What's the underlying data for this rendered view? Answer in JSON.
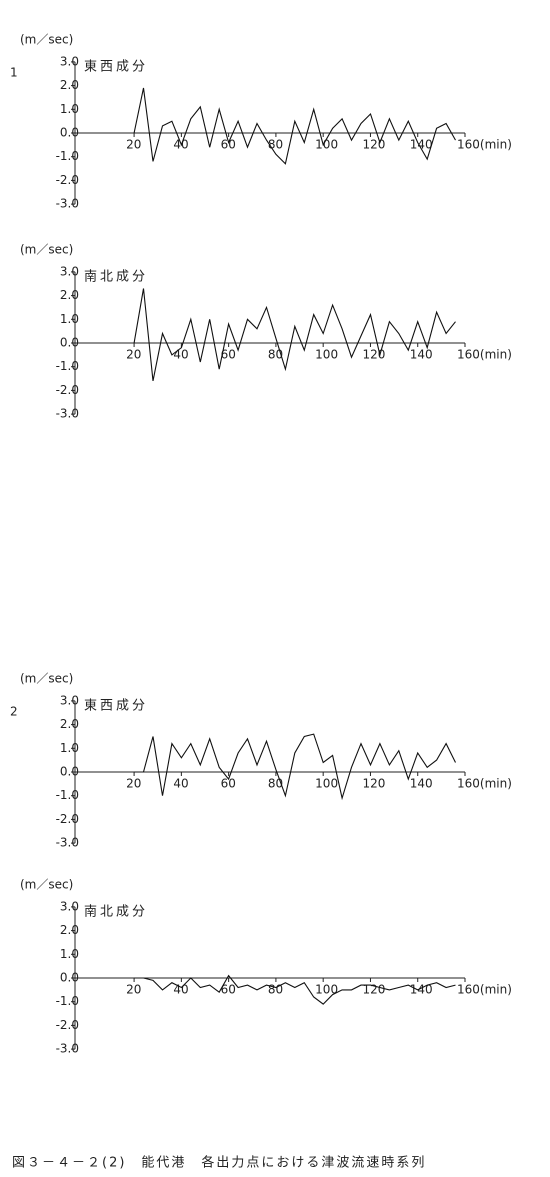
{
  "caption": "図３－４－２(2)　能代港　各出力点における津波流速時系列",
  "chart_data": [
    {
      "type": "line",
      "label": "1",
      "y_label": "(m／sec)",
      "title": "東西成分",
      "color": "#111111",
      "x": [
        20,
        24,
        28,
        32,
        36,
        40,
        44,
        48,
        52,
        56,
        60,
        64,
        68,
        72,
        76,
        80,
        84,
        88,
        92,
        96,
        100,
        104,
        108,
        112,
        116,
        120,
        124,
        128,
        132,
        136,
        140,
        144,
        148,
        152,
        156
      ],
      "values": [
        0,
        1.9,
        -1.2,
        0.3,
        0.5,
        -0.5,
        0.6,
        1.1,
        -0.6,
        1.0,
        -0.4,
        0.5,
        -0.6,
        0.4,
        -0.3,
        -0.9,
        -1.3,
        0.5,
        -0.4,
        1.0,
        -0.5,
        0.2,
        0.6,
        -0.3,
        0.4,
        0.8,
        -0.4,
        0.6,
        -0.3,
        0.5,
        -0.4,
        -1.1,
        0.2,
        0.4,
        -0.3
      ],
      "xlim": [
        -5,
        160
      ],
      "ylim": [
        -3,
        3
      ],
      "xticks": [
        20,
        40,
        60,
        80,
        100,
        120,
        140,
        {
          "value": 160,
          "label": "160(min)"
        }
      ],
      "yticks": [
        {
          "value": 3,
          "label": "3.0"
        },
        {
          "value": 2,
          "label": "2.0"
        },
        {
          "value": 1,
          "label": "1.0"
        },
        {
          "value": 0,
          "label": "0.0"
        },
        {
          "value": -1,
          "label": "-1.0"
        },
        {
          "value": -2,
          "label": "-2.0"
        },
        {
          "value": -3,
          "label": "-3.0"
        }
      ]
    },
    {
      "type": "line",
      "y_label": "(m／sec)",
      "title": "南北成分",
      "color": "#111111",
      "x": [
        20,
        24,
        28,
        32,
        36,
        40,
        44,
        48,
        52,
        56,
        60,
        64,
        68,
        72,
        76,
        80,
        84,
        88,
        92,
        96,
        100,
        104,
        108,
        112,
        116,
        120,
        124,
        128,
        132,
        136,
        140,
        144,
        148,
        152,
        156
      ],
      "values": [
        0,
        2.3,
        -1.6,
        0.4,
        -0.5,
        -0.2,
        1.0,
        -0.8,
        1.0,
        -1.1,
        0.8,
        -0.3,
        1.0,
        0.6,
        1.5,
        0.2,
        -1.1,
        0.7,
        -0.3,
        1.2,
        0.4,
        1.6,
        0.6,
        -0.6,
        0.3,
        1.2,
        -0.5,
        0.9,
        0.4,
        -0.3,
        0.9,
        -0.2,
        1.3,
        0.4,
        0.9
      ],
      "xlim": [
        -5,
        160
      ],
      "ylim": [
        -3,
        3
      ],
      "xticks": [
        20,
        40,
        60,
        80,
        100,
        120,
        140,
        {
          "value": 160,
          "label": "160(min)"
        }
      ],
      "yticks": [
        {
          "value": 3,
          "label": "3.0"
        },
        {
          "value": 2,
          "label": "2.0"
        },
        {
          "value": 1,
          "label": "1.0"
        },
        {
          "value": 0,
          "label": "0.0"
        },
        {
          "value": -1,
          "label": "-1.0"
        },
        {
          "value": -2,
          "label": "-2.0"
        },
        {
          "value": -3,
          "label": "-3.0"
        }
      ]
    },
    {
      "type": "line",
      "label": "2",
      "y_label": "(m／sec)",
      "title": "東西成分",
      "color": "#111111",
      "x": [
        20,
        24,
        28,
        32,
        36,
        40,
        44,
        48,
        52,
        56,
        60,
        64,
        68,
        72,
        76,
        80,
        84,
        88,
        92,
        96,
        100,
        104,
        108,
        112,
        116,
        120,
        124,
        128,
        132,
        136,
        140,
        144,
        148,
        152,
        156
      ],
      "values": [
        0,
        0,
        1.5,
        -1.0,
        1.2,
        0.6,
        1.2,
        0.3,
        1.4,
        0.2,
        -0.3,
        0.8,
        1.4,
        0.3,
        1.3,
        0.1,
        -1.0,
        0.8,
        1.5,
        1.6,
        0.4,
        0.7,
        -1.1,
        0.2,
        1.2,
        0.3,
        1.2,
        0.3,
        0.9,
        -0.3,
        0.8,
        0.2,
        0.5,
        1.2,
        0.4
      ],
      "xlim": [
        -5,
        160
      ],
      "ylim": [
        -3,
        3
      ],
      "xticks": [
        20,
        40,
        60,
        80,
        100,
        120,
        140,
        {
          "value": 160,
          "label": "160(min)"
        }
      ],
      "yticks": [
        {
          "value": 3,
          "label": "3.0"
        },
        {
          "value": 2,
          "label": "2.0"
        },
        {
          "value": 1,
          "label": "1.0"
        },
        {
          "value": 0,
          "label": "0.0"
        },
        {
          "value": -1,
          "label": "-1.0"
        },
        {
          "value": -2,
          "label": "-2.0"
        },
        {
          "value": -3,
          "label": "-3.0"
        }
      ]
    },
    {
      "type": "line",
      "y_label": "(m／sec)",
      "title": "南北成分",
      "color": "#111111",
      "x": [
        20,
        24,
        28,
        32,
        36,
        40,
        44,
        48,
        52,
        56,
        60,
        64,
        68,
        72,
        76,
        80,
        84,
        88,
        92,
        96,
        100,
        104,
        108,
        112,
        116,
        120,
        124,
        128,
        132,
        136,
        140,
        144,
        148,
        152,
        156
      ],
      "values": [
        0,
        0,
        -0.1,
        -0.5,
        -0.2,
        -0.4,
        0,
        -0.4,
        -0.3,
        -0.6,
        0.1,
        -0.4,
        -0.3,
        -0.5,
        -0.3,
        -0.4,
        -0.2,
        -0.4,
        -0.2,
        -0.8,
        -1.1,
        -0.7,
        -0.5,
        -0.5,
        -0.3,
        -0.3,
        -0.4,
        -0.5,
        -0.4,
        -0.3,
        -0.5,
        -0.3,
        -0.2,
        -0.4,
        -0.3
      ],
      "xlim": [
        -5,
        160
      ],
      "ylim": [
        -3,
        3
      ],
      "xticks": [
        20,
        40,
        60,
        80,
        100,
        120,
        140,
        {
          "value": 160,
          "label": "160(min)"
        }
      ],
      "yticks": [
        {
          "value": 3,
          "label": "3.0"
        },
        {
          "value": 2,
          "label": "2.0"
        },
        {
          "value": 1,
          "label": "1.0"
        },
        {
          "value": 0,
          "label": "0.0"
        },
        {
          "value": -1,
          "label": "-1.0"
        },
        {
          "value": -2,
          "label": "-2.0"
        },
        {
          "value": -3,
          "label": "-3.0"
        }
      ]
    }
  ]
}
